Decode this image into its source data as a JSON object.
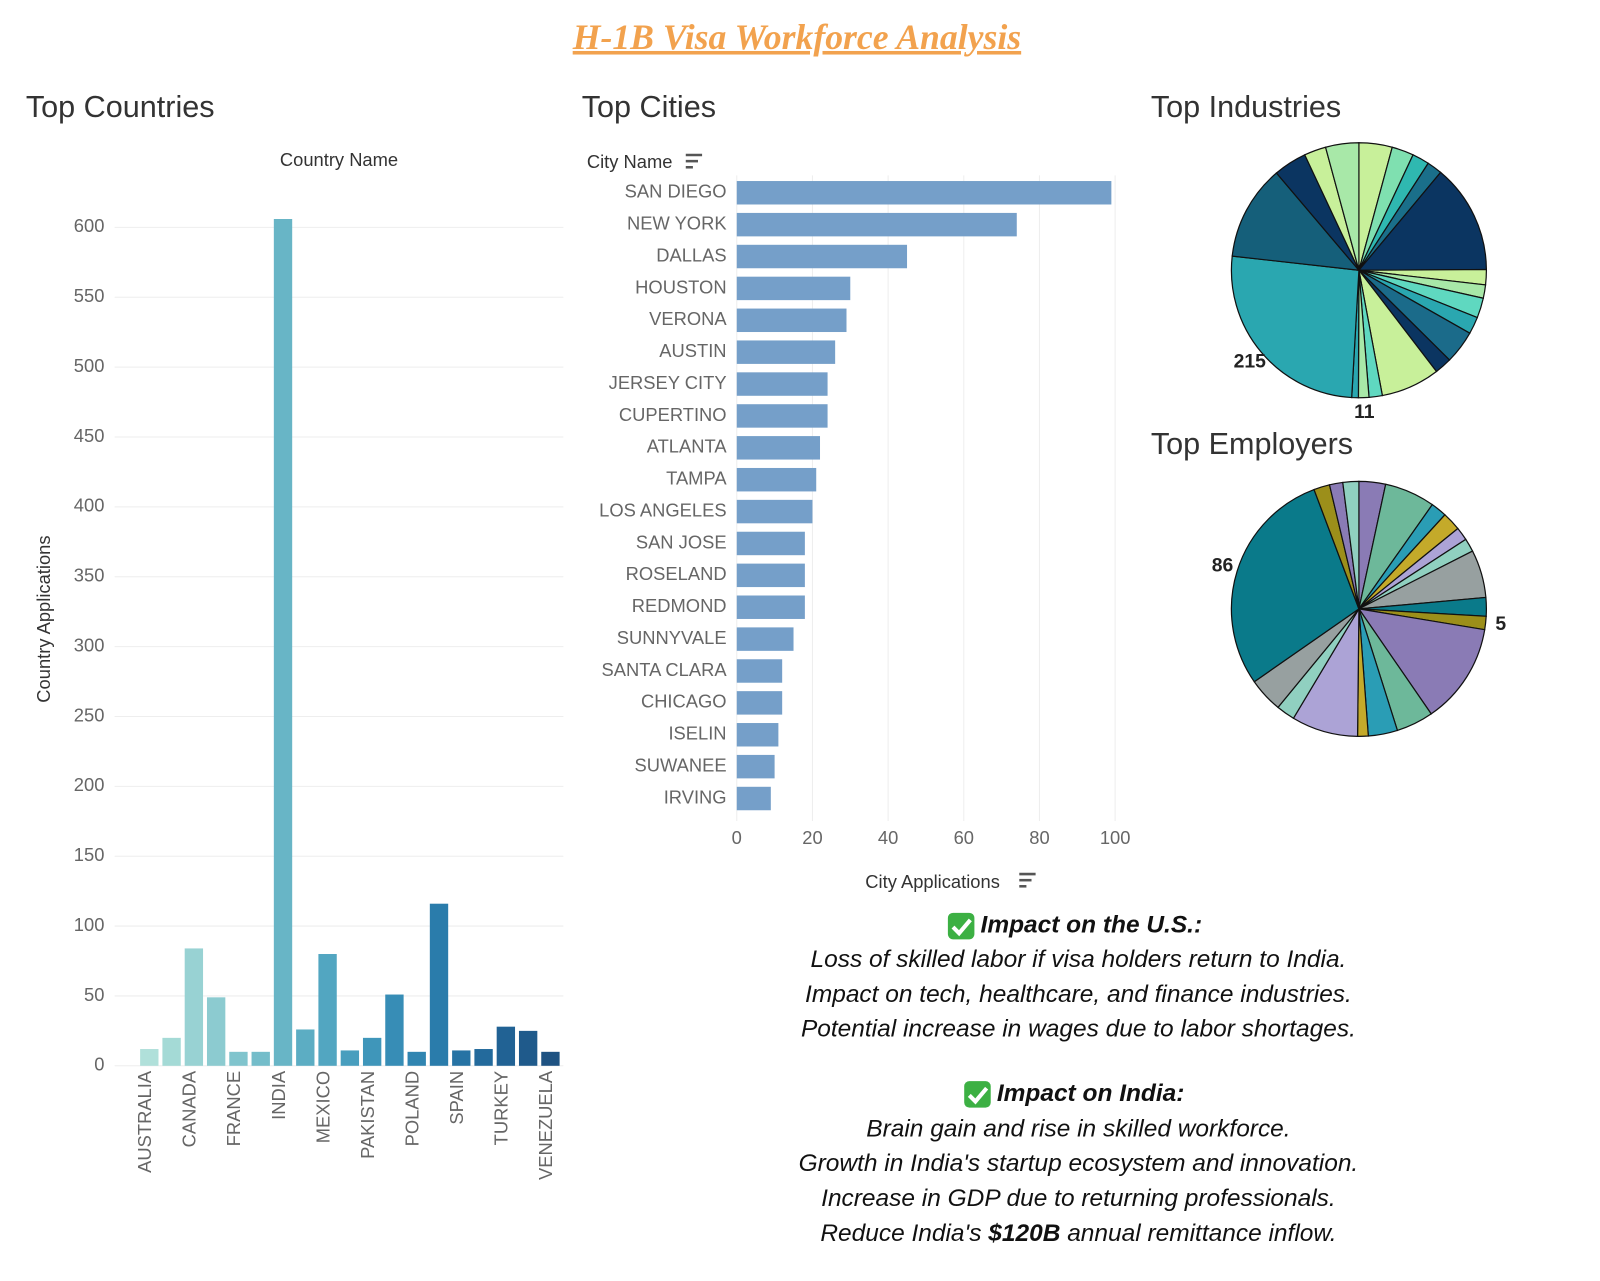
{
  "title": "H-1B Visa Workforce Analysis",
  "chart_data": [
    {
      "type": "bar",
      "title": "Top Countries",
      "x_label": "Country Name",
      "y_label": "Country Applications",
      "categories": [
        "AUSTRALIA",
        null,
        "CANADA",
        null,
        "FRANCE",
        null,
        "INDIA",
        null,
        "MEXICO",
        null,
        "PAKISTAN",
        null,
        "POLAND",
        null,
        "SPAIN",
        null,
        "TURKEY",
        null,
        "VENEZUELA"
      ],
      "values": [
        12,
        20,
        84,
        49,
        10,
        10,
        606,
        26,
        80,
        11,
        20,
        51,
        10,
        116,
        11,
        12,
        28,
        25,
        10
      ],
      "colors": [
        "#b0e0da",
        "#a4dad6",
        "#98d2d3",
        "#8ccbd0",
        "#80c4cd",
        "#74bdca",
        "#68b5c6",
        "#5cadc3",
        "#52a6c1",
        "#489ebe",
        "#3f96ba",
        "#378db6",
        "#3085b1",
        "#2a7cab",
        "#2673a4",
        "#236a9c",
        "#216294",
        "#1f5a8b",
        "#1e5282"
      ],
      "ylim": [
        0,
        635
      ],
      "yticks": [
        0,
        50,
        100,
        150,
        200,
        250,
        300,
        350,
        400,
        450,
        500,
        550,
        600
      ],
      "grid": true
    },
    {
      "type": "bar",
      "orientation": "horizontal",
      "title": "Top Cities",
      "y_label": "City Name",
      "x_label": "City Applications",
      "categories": [
        "SAN DIEGO",
        "NEW YORK",
        "DALLAS",
        "HOUSTON",
        "VERONA",
        "AUSTIN",
        "JERSEY CITY",
        "CUPERTINO",
        "ATLANTA",
        "TAMPA",
        "LOS ANGELES",
        "SAN JOSE",
        "ROSELAND",
        "REDMOND",
        "SUNNYVALE",
        "SANTA CLARA",
        "CHICAGO",
        "ISELIN",
        "SUWANEE",
        "IRVING"
      ],
      "values": [
        99,
        74,
        45,
        30,
        29,
        26,
        24,
        24,
        22,
        21,
        20,
        18,
        18,
        18,
        15,
        12,
        12,
        11,
        10,
        9
      ],
      "color": "#759fc9",
      "xlim": [
        0,
        100
      ],
      "xticks": [
        0,
        20,
        40,
        60,
        80,
        100
      ],
      "grid": true
    },
    {
      "type": "pie",
      "title": "Top Industries",
      "values": [
        35,
        23,
        18,
        16,
        115,
        16,
        14,
        21,
        18,
        35,
        18,
        62,
        14,
        11,
        7,
        215,
        100,
        35,
        23,
        35
      ],
      "colors": [
        "#c8f09a",
        "#7fe0b0",
        "#2fb8b0",
        "#1a6f8a",
        "#0b3561",
        "#c8f09a",
        "#a8e8a8",
        "#5fd8c0",
        "#2aa7b0",
        "#1b6b8a",
        "#0b3561",
        "#c8f09a",
        "#5fd8c0",
        "#a8e8a8",
        "#2aa7b0",
        "#2aa7b0",
        "#155f7a",
        "#0b3561",
        "#c8f09a",
        "#a8e8a8"
      ],
      "labeled_slices": [
        13,
        15
      ]
    },
    {
      "type": "pie",
      "title": "Top Employers",
      "values": [
        10,
        19,
        6,
        7,
        5,
        5,
        18,
        7,
        5,
        38,
        14,
        11,
        4,
        25,
        7,
        13,
        86,
        6,
        5,
        6
      ],
      "colors": [
        "#8a7bb5",
        "#6db89a",
        "#2a9db5",
        "#c4aa2a",
        "#aca3d6",
        "#90d0c0",
        "#97a0a0",
        "#0a7a8a",
        "#9c8f1a",
        "#8a7bb5",
        "#6db89a",
        "#2a9db5",
        "#c4aa2a",
        "#aca3d6",
        "#90d0c0",
        "#97a0a0",
        "#0a7a8a",
        "#9c8f1a",
        "#8a7bb5",
        "#90d0c0"
      ],
      "labeled_slices": [
        8,
        16
      ]
    }
  ],
  "impact_us": {
    "heading": "Impact on the U.S.:",
    "lines": [
      "Loss of skilled labor if visa holders return to India.",
      "Impact on tech, healthcare, and finance industries.",
      "Potential increase in wages due to labor shortages."
    ]
  },
  "impact_india": {
    "heading": "Impact on India:",
    "lines": [
      "Brain gain and rise in skilled workforce.",
      "Growth in India's startup ecosystem and innovation.",
      "Increase in GDP due to returning professionals."
    ],
    "last_line": {
      "before": "Reduce India's",
      "bold": "$120B",
      "after": "annual remittance inflow."
    }
  }
}
